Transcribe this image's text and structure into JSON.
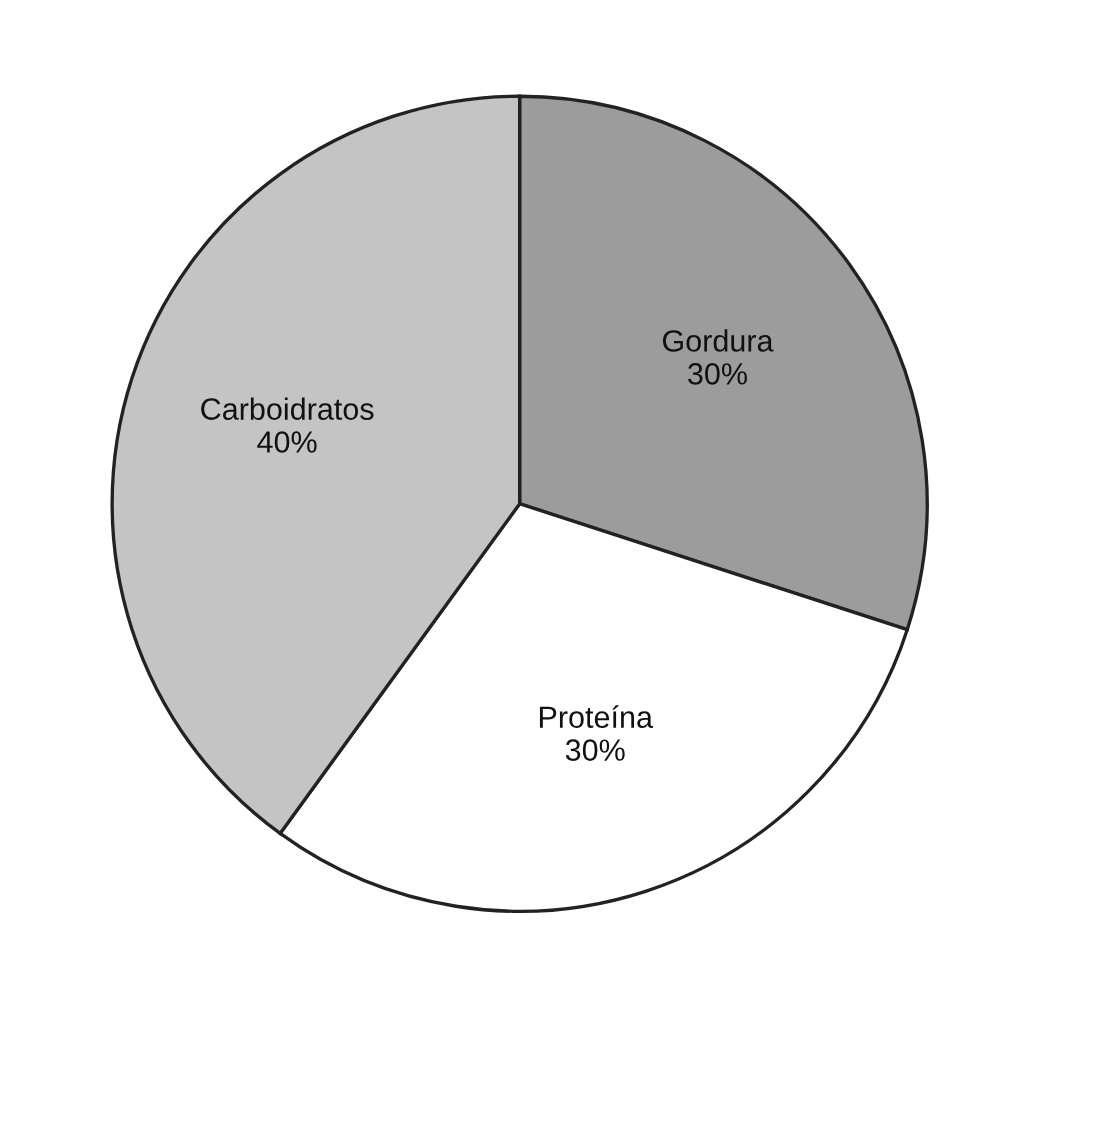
{
  "chart_data": {
    "type": "pie",
    "categories": [
      "Gordura",
      "Proteína",
      "Carboidratos"
    ],
    "values": [
      30,
      30,
      40
    ],
    "value_labels": [
      "30%",
      "30%",
      "40%"
    ],
    "colors": [
      "#9c9c9c",
      "#ffffff",
      "#c4c4c4"
    ],
    "legend": false
  }
}
